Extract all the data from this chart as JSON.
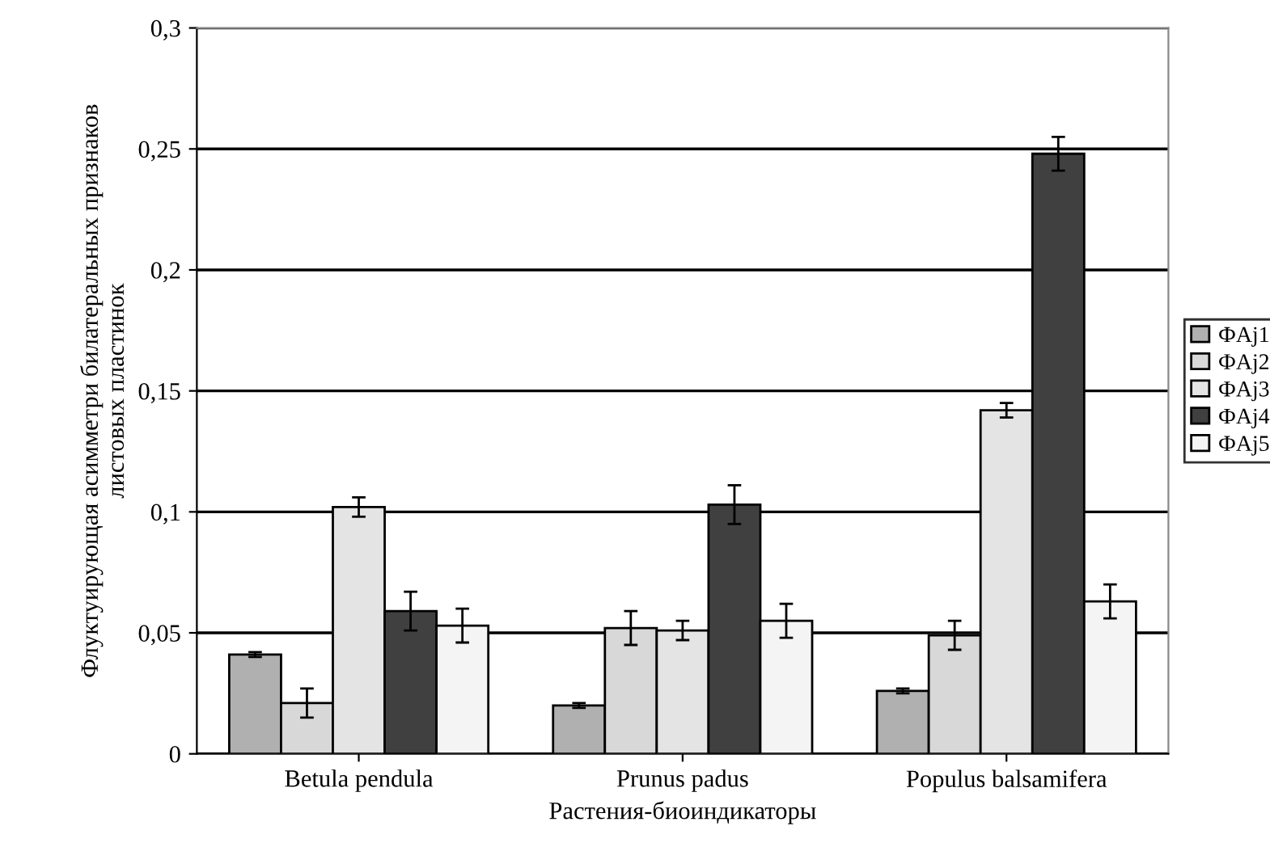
{
  "chart_data": {
    "type": "bar",
    "xlabel": "Растения-биоиндикаторы",
    "ylabel": "Флуктуирующая асимметри билатеральных признаков\nлистовых пластинок",
    "categories": [
      "Betula pendula",
      "Prunus padus",
      "Populus balsamifera"
    ],
    "series": [
      {
        "name": "ФAj1",
        "color": "#b0b0b0",
        "values": [
          0.041,
          0.02,
          0.026
        ],
        "errors": [
          0.001,
          0.001,
          0.001
        ]
      },
      {
        "name": "ФAj2",
        "color": "#d8d8d8",
        "values": [
          0.021,
          0.052,
          0.049
        ],
        "errors": [
          0.006,
          0.007,
          0.006
        ]
      },
      {
        "name": "ФAj3",
        "color": "#e4e4e4",
        "values": [
          0.102,
          0.051,
          0.142
        ],
        "errors": [
          0.004,
          0.004,
          0.003
        ]
      },
      {
        "name": "ФAj4",
        "color": "#404040",
        "values": [
          0.059,
          0.103,
          0.248
        ],
        "errors": [
          0.008,
          0.008,
          0.007
        ]
      },
      {
        "name": "ФAj5",
        "color": "#f4f4f4",
        "values": [
          0.053,
          0.055,
          0.063
        ],
        "errors": [
          0.007,
          0.007,
          0.007
        ]
      }
    ],
    "ylim": [
      0,
      0.3
    ],
    "yticks": [
      {
        "value": 0,
        "label": "0"
      },
      {
        "value": 0.05,
        "label": "0,05"
      },
      {
        "value": 0.1,
        "label": "0,1"
      },
      {
        "value": 0.15,
        "label": "0,15"
      },
      {
        "value": 0.2,
        "label": "0,2"
      },
      {
        "value": 0.25,
        "label": "0,25"
      },
      {
        "value": 0.3,
        "label": "0,3"
      }
    ],
    "grid": "y",
    "legend": "right"
  }
}
